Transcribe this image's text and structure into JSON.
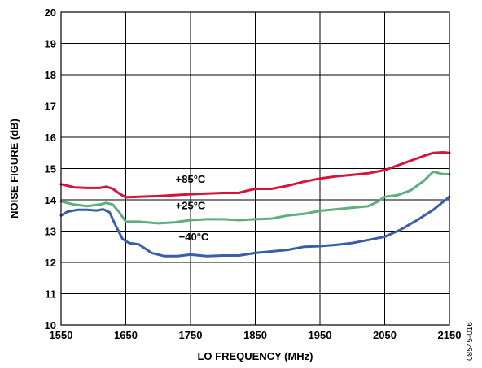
{
  "chart_data": {
    "type": "line",
    "title": "",
    "xlabel": "LO FREQUENCY (MHz)",
    "ylabel": "NOISE FIGURE (dB)",
    "xlim": [
      1550,
      2150
    ],
    "ylim": [
      10,
      20
    ],
    "xticks": [
      "1550",
      "1650",
      "1750",
      "1850",
      "1950",
      "2050",
      "2150"
    ],
    "yticks": [
      "10",
      "11",
      "12",
      "13",
      "14",
      "15",
      "16",
      "17",
      "18",
      "19",
      "20"
    ],
    "grid": true,
    "figure_id": "08545-016",
    "series": [
      {
        "name": "+85°C",
        "color": "#d4143c",
        "x": [
          1550,
          1570,
          1590,
          1610,
          1620,
          1630,
          1640,
          1650,
          1670,
          1700,
          1725,
          1750,
          1775,
          1800,
          1825,
          1835,
          1850,
          1875,
          1900,
          1925,
          1950,
          1975,
          2000,
          2025,
          2050,
          2070,
          2090,
          2110,
          2125,
          2140,
          2150
        ],
        "values": [
          14.5,
          14.4,
          14.38,
          14.38,
          14.42,
          14.35,
          14.2,
          14.08,
          14.1,
          14.12,
          14.15,
          14.18,
          14.2,
          14.22,
          14.22,
          14.28,
          14.35,
          14.35,
          14.45,
          14.58,
          14.68,
          14.75,
          14.8,
          14.85,
          14.95,
          15.1,
          15.25,
          15.4,
          15.5,
          15.52,
          15.5
        ]
      },
      {
        "name": "+25°C",
        "color": "#5fae82",
        "x": [
          1550,
          1570,
          1590,
          1610,
          1620,
          1630,
          1640,
          1650,
          1670,
          1700,
          1725,
          1750,
          1775,
          1800,
          1825,
          1850,
          1875,
          1900,
          1925,
          1950,
          1975,
          2000,
          2025,
          2040,
          2050,
          2070,
          2090,
          2110,
          2125,
          2140,
          2150
        ],
        "values": [
          13.95,
          13.85,
          13.8,
          13.85,
          13.9,
          13.85,
          13.6,
          13.3,
          13.3,
          13.25,
          13.28,
          13.35,
          13.38,
          13.38,
          13.35,
          13.38,
          13.4,
          13.5,
          13.55,
          13.65,
          13.7,
          13.75,
          13.8,
          13.95,
          14.1,
          14.15,
          14.3,
          14.6,
          14.9,
          14.82,
          14.82
        ]
      },
      {
        "name": "−40°C",
        "color": "#3a5fa8",
        "x": [
          1550,
          1560,
          1575,
          1590,
          1605,
          1615,
          1625,
          1635,
          1645,
          1655,
          1670,
          1690,
          1710,
          1730,
          1750,
          1775,
          1800,
          1825,
          1850,
          1875,
          1900,
          1925,
          1950,
          1975,
          2000,
          2025,
          2050,
          2075,
          2100,
          2125,
          2150
        ],
        "values": [
          13.5,
          13.62,
          13.68,
          13.68,
          13.66,
          13.7,
          13.6,
          13.15,
          12.75,
          12.62,
          12.58,
          12.3,
          12.2,
          12.2,
          12.25,
          12.2,
          12.22,
          12.22,
          12.3,
          12.35,
          12.4,
          12.5,
          12.52,
          12.56,
          12.62,
          12.72,
          12.82,
          13.05,
          13.35,
          13.68,
          14.1
        ]
      }
    ]
  }
}
